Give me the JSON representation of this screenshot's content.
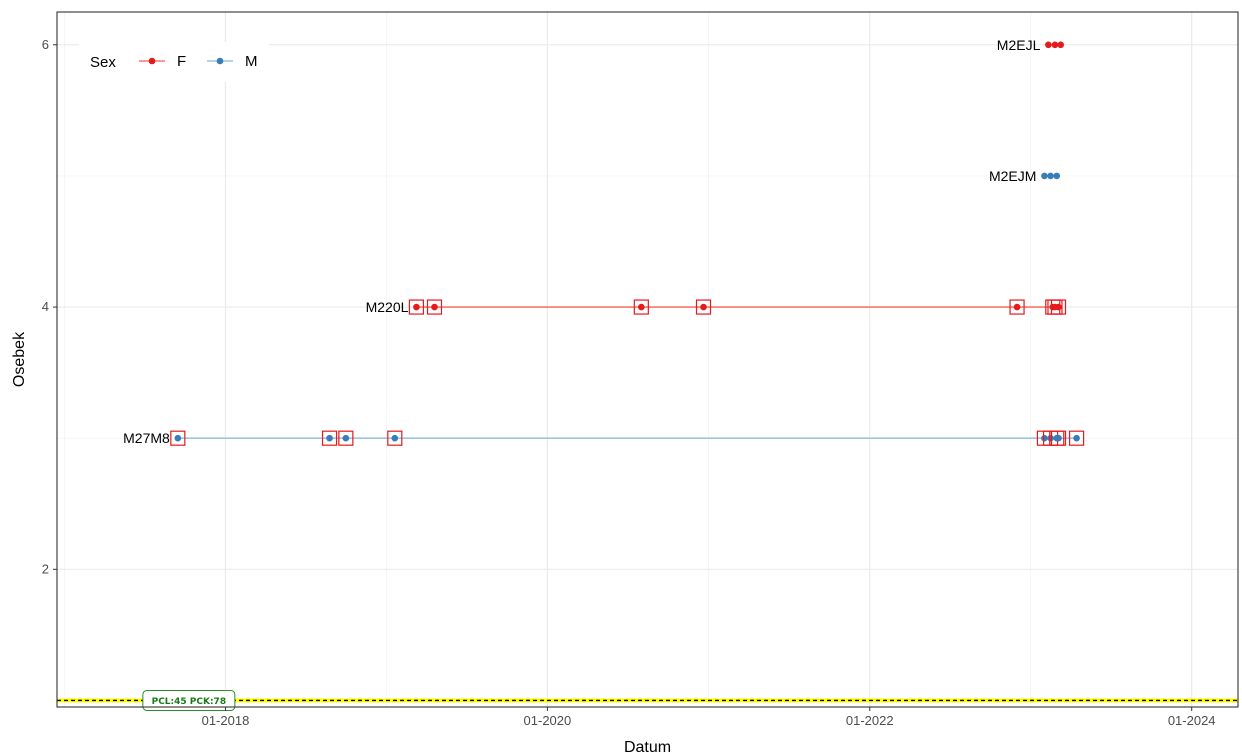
{
  "chart_data": {
    "type": "line",
    "xlabel": "Datum",
    "ylabel": "Osebek",
    "xlim": [
      "2016-12-15",
      "2024-04-15"
    ],
    "ylim": [
      0.95,
      6.25
    ],
    "x_ticks": [
      {
        "date": "2018-01-01",
        "label": "01-2018"
      },
      {
        "date": "2020-01-01",
        "label": "01-2020"
      },
      {
        "date": "2022-01-01",
        "label": "01-2022"
      },
      {
        "date": "2024-01-01",
        "label": "01-2024"
      }
    ],
    "y_ticks": [
      2,
      4,
      6
    ],
    "grid": true,
    "legend": {
      "title": "Sex",
      "placement": "top-left"
    },
    "reference_line": {
      "y": 1,
      "color": "#ffff00",
      "style": "dashed",
      "badge_date": "2017-10-10",
      "label": "PCL:45 PCK:78"
    },
    "series": [
      {
        "name": "F",
        "color": "#e41a1c",
        "line_color": "#f8766d"
      },
      {
        "name": "M",
        "color": "#377eb8",
        "line_color": "#9ec4e4"
      }
    ],
    "individuals": [
      {
        "id": "M27M8",
        "y": 3,
        "sex": "M",
        "dates": [
          "2017-09-15",
          "2018-08-25",
          "2018-10-01",
          "2019-01-20",
          "2023-02-01",
          "2023-02-15",
          "2023-03-01",
          "2023-03-05",
          "2023-04-15"
        ],
        "boxed": [
          true,
          true,
          true,
          true,
          true,
          true,
          true,
          true,
          true
        ]
      },
      {
        "id": "M220L",
        "y": 4,
        "sex": "F",
        "dates": [
          "2019-03-10",
          "2019-04-20",
          "2020-08-01",
          "2020-12-20",
          "2022-12-01",
          "2023-02-20",
          "2023-02-25",
          "2023-03-05"
        ],
        "boxed": [
          true,
          true,
          true,
          true,
          true,
          true,
          true,
          true
        ]
      },
      {
        "id": "M2EJM",
        "y": 5,
        "sex": "M",
        "dates": [
          "2023-02-01",
          "2023-02-15",
          "2023-03-01"
        ],
        "boxed": [
          false,
          false,
          false
        ]
      },
      {
        "id": "M2EJL",
        "y": 6,
        "sex": "F",
        "dates": [
          "2023-02-10",
          "2023-02-25",
          "2023-03-10"
        ],
        "boxed": [
          false,
          false,
          false
        ]
      }
    ]
  }
}
